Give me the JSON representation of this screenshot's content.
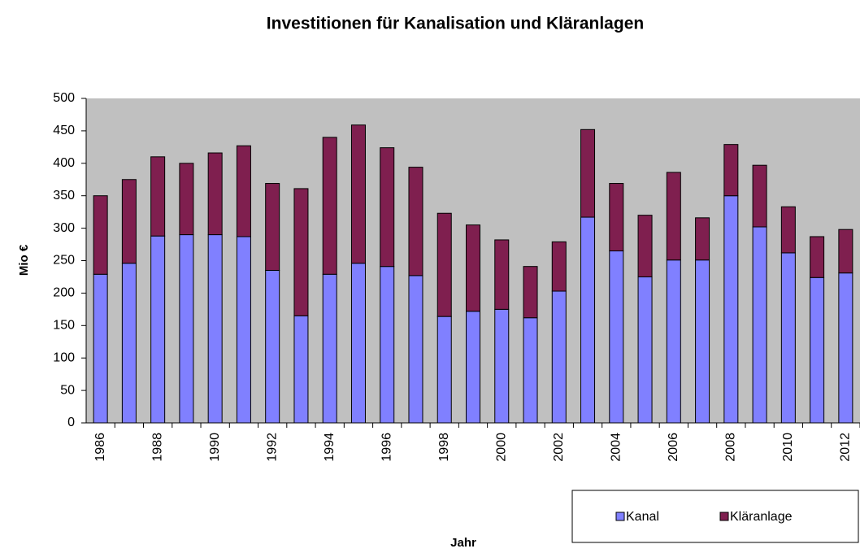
{
  "chart_data": {
    "type": "stacked_bar",
    "title": "Investitionen für Kanalisation und Kläranlagen",
    "x_label": "Jahr",
    "y_label": "Mio €",
    "categories": [
      "1986",
      null,
      "1988",
      null,
      "1990",
      null,
      "1992",
      null,
      "1994",
      null,
      "1996",
      null,
      "1998",
      null,
      "2000",
      null,
      "2002",
      null,
      "2004",
      null,
      "2006",
      null,
      "2008",
      null,
      "2010",
      null,
      "2012"
    ],
    "series": [
      {
        "name": "Kanal",
        "color": "#8080ff",
        "values": [
          229,
          246,
          288,
          290,
          290,
          287,
          235,
          165,
          229,
          246,
          241,
          227,
          164,
          172,
          175,
          162,
          203,
          317,
          265,
          225,
          251,
          251,
          350,
          302,
          262,
          224,
          231
        ]
      },
      {
        "name": "Kläranlage",
        "color": "#7f1f4f",
        "values": [
          121,
          129,
          122,
          110,
          126,
          140,
          134,
          196,
          211,
          213,
          183,
          167,
          159,
          133,
          107,
          79,
          76,
          135,
          104,
          95,
          135,
          65,
          79,
          95,
          71,
          63,
          67
        ]
      }
    ],
    "ylim": [
      0,
      500
    ],
    "yticks": [
      0,
      50,
      100,
      150,
      200,
      250,
      300,
      350,
      400,
      450,
      500
    ],
    "plot_background": "#c0c0c0",
    "legend": "bottom-right"
  }
}
